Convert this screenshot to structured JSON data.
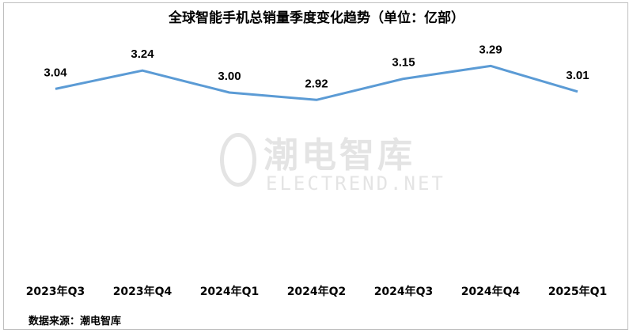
{
  "chart_data": {
    "type": "line",
    "title": "全球智能手机总销量季度变化趋势（单位：亿部）",
    "categories": [
      "2023年Q3",
      "2023年Q4",
      "2024年Q1",
      "2024年Q2",
      "2024年Q3",
      "2024年Q4",
      "2025年Q1"
    ],
    "values": [
      3.04,
      3.24,
      3.0,
      2.92,
      3.15,
      3.29,
      3.01
    ],
    "data_labels": [
      "3.04",
      "3.24",
      "3.00",
      "2.92",
      "3.15",
      "3.29",
      "3.01"
    ],
    "xlabel": "",
    "ylabel": "",
    "grid": false,
    "line_color": "#5b9bd5"
  },
  "watermark": {
    "cn": "潮电智库",
    "en": "ELECTREND.NET"
  },
  "source": "数据来源：潮电智库"
}
